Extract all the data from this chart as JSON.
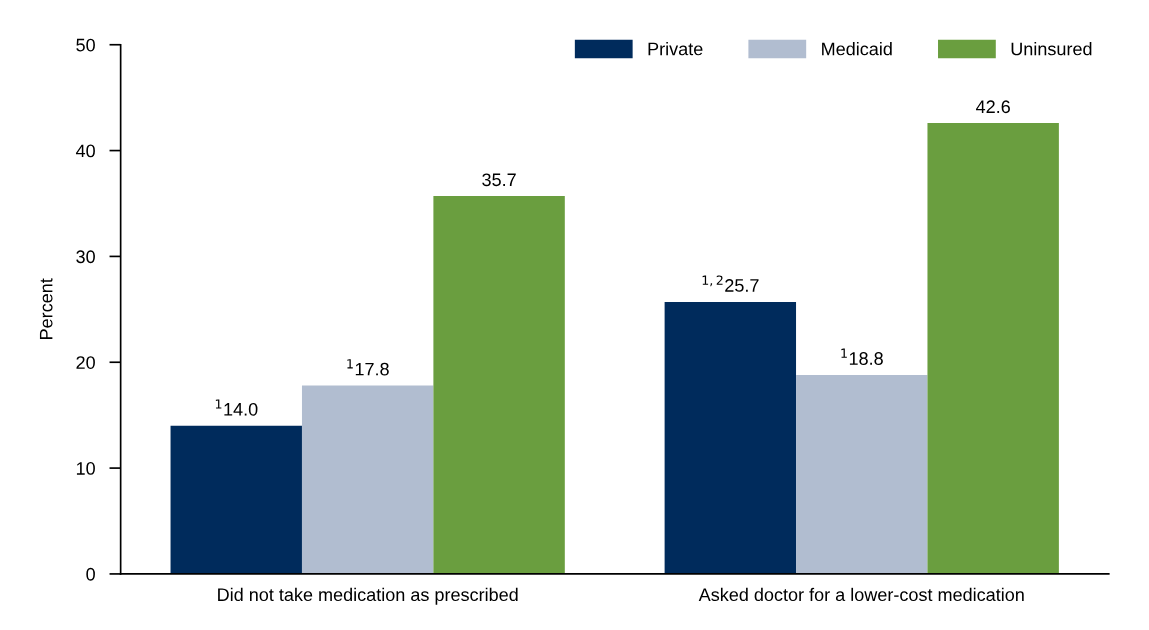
{
  "chart_data": {
    "type": "bar",
    "ylabel": "Percent",
    "categories": [
      "Did not take medication as prescribed",
      "Asked doctor for a lower-cost medication"
    ],
    "series": [
      {
        "name": "Private",
        "color": "#002b5c",
        "values": [
          14.0,
          25.7
        ],
        "value_labels": [
          "$^{1}$14.0",
          "$^{1,2}$25.7"
        ]
      },
      {
        "name": "Medicaid",
        "color": "#b1bdd0",
        "values": [
          17.8,
          18.8
        ],
        "value_labels": [
          "$^{1}$17.8",
          "$^{1}$18.8"
        ]
      },
      {
        "name": "Uninsured",
        "color": "#6a9e3f",
        "values": [
          35.7,
          42.6
        ],
        "value_labels": [
          "35.7",
          "42.6"
        ]
      }
    ],
    "ylim": [
      0,
      50
    ],
    "yticks": [
      0,
      10,
      20,
      30,
      40,
      50
    ],
    "grid": false,
    "legend": "top right"
  }
}
